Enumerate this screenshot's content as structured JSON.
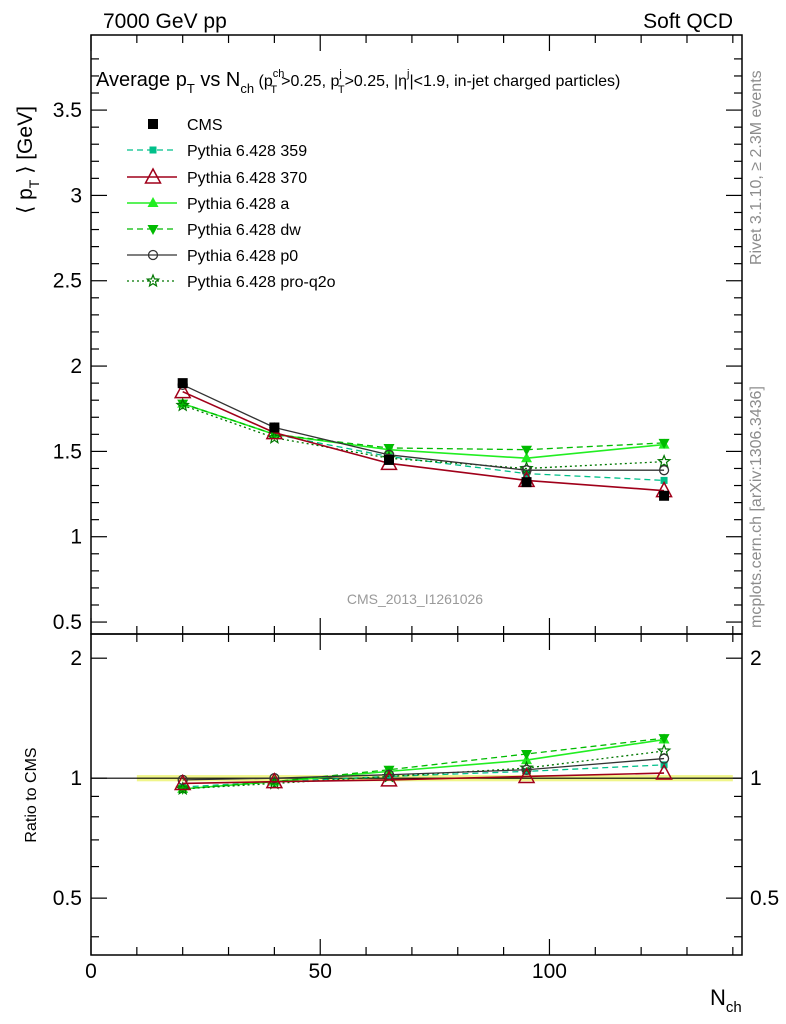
{
  "header": {
    "left": "7000 GeV pp",
    "right": "Soft QCD"
  },
  "side_text": {
    "rivet": "Rivet 3.1.10, ≥ 2.3M events",
    "mcplots": "mcplots.cern.ch [arXiv:1306.3436]"
  },
  "watermark": "CMS_2013_I1261026",
  "colors": {
    "cms": "#000000",
    "p359": "#00c08a",
    "p370": "#a0001a",
    "pa": "#22ee22",
    "pdw": "#00bb00",
    "p0": "#333333",
    "pq2o": "#007700",
    "band": "#f0f58a"
  },
  "chart_data": {
    "type": "line",
    "title": "Average p_T vs N_ch (p_T^ch>0.25, p_T^j>0.25, |η^j|<1.9, in-jet charged particles)",
    "title_parts": {
      "a": "Average p",
      "a_sub": "T",
      "b": " vs N",
      "b_sub": "ch",
      "c": " (p",
      "c_sup": "ch",
      "c_sub": "T",
      "d": ">0.25, p",
      "d_sup": "j",
      "d_sub": "T",
      "e": ">0.25, |η",
      "e_sup": "j",
      "f": "|<1.9, in-jet charged particles)"
    },
    "ylabel": "⟨ p_T ⟩ [GeV]",
    "ylabel_parts": {
      "a": "⟨ p",
      "sub": "T",
      "b": " ⟩ [GeV]"
    },
    "ratio_ylabel": "Ratio to CMS",
    "xlabel": "N_ch",
    "xlabel_parts": {
      "a": "N",
      "sub": "ch"
    },
    "xlim": [
      0,
      142
    ],
    "ylim": [
      0.43,
      3.94
    ],
    "ratio_ylim": [
      0.36,
      2.3
    ],
    "x_ticks": [
      "0",
      "50",
      "100"
    ],
    "y_ticks": [
      "0.5",
      "1",
      "1.5",
      "2",
      "2.5",
      "3",
      "3.5"
    ],
    "ratio_ticks": [
      "0.5",
      "1",
      "2"
    ],
    "x": [
      20,
      40,
      65,
      95,
      125
    ],
    "series": [
      {
        "name": "CMS",
        "key": "cms",
        "values": [
          1.9,
          1.64,
          1.45,
          1.32,
          1.24
        ]
      },
      {
        "name": "Pythia 6.428 359",
        "key": "p359",
        "values": [
          1.78,
          1.6,
          1.47,
          1.37,
          1.33
        ]
      },
      {
        "name": "Pythia 6.428 370",
        "key": "p370",
        "values": [
          1.85,
          1.61,
          1.43,
          1.33,
          1.27
        ]
      },
      {
        "name": "Pythia 6.428 a",
        "key": "pa",
        "values": [
          1.78,
          1.6,
          1.51,
          1.46,
          1.54
        ]
      },
      {
        "name": "Pythia 6.428 dw",
        "key": "pdw",
        "values": [
          1.78,
          1.6,
          1.52,
          1.51,
          1.55
        ]
      },
      {
        "name": "Pythia 6.428 p0",
        "key": "p0",
        "values": [
          1.89,
          1.64,
          1.48,
          1.39,
          1.39
        ]
      },
      {
        "name": "Pythia 6.428 pro-q2o",
        "key": "pq2o",
        "values": [
          1.77,
          1.58,
          1.46,
          1.4,
          1.44
        ]
      }
    ],
    "ratio": [
      {
        "key": "p359",
        "values": [
          0.95,
          0.98,
          1.01,
          1.04,
          1.08
        ]
      },
      {
        "key": "p370",
        "values": [
          0.97,
          0.98,
          0.99,
          1.01,
          1.03
        ]
      },
      {
        "key": "pa",
        "values": [
          0.94,
          0.98,
          1.04,
          1.11,
          1.25
        ]
      },
      {
        "key": "pdw",
        "values": [
          0.94,
          0.98,
          1.05,
          1.15,
          1.26
        ]
      },
      {
        "key": "p0",
        "values": [
          0.99,
          1.0,
          1.02,
          1.05,
          1.12
        ]
      },
      {
        "key": "pq2o",
        "values": [
          0.94,
          0.97,
          1.01,
          1.06,
          1.17
        ]
      }
    ]
  }
}
